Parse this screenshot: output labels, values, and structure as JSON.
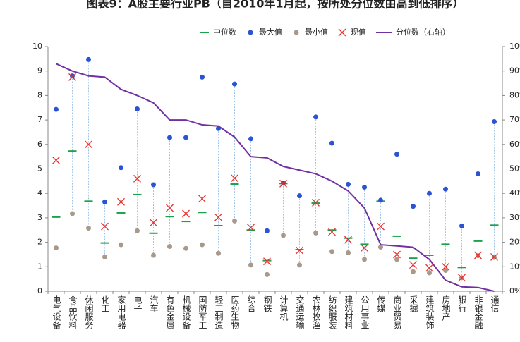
{
  "chart_data": {
    "type": "range-dot",
    "title": "图表9：A股主要行业PB（自2010年1月起，按所处分位数由高到低排序）",
    "categories": [
      "电气设备",
      "食品饮料",
      "休闲服务",
      "化工",
      "家用电器",
      "电子",
      "汽车",
      "有色金属",
      "机械设备",
      "国防军工",
      "轻工制造",
      "医药生物",
      "综合",
      "钢铁",
      "计算机",
      "交通运输",
      "农林牧渔",
      "纺织服装",
      "建筑材料",
      "公用事业",
      "传媒",
      "商业贸易",
      "采掘",
      "建筑装饰",
      "房地产",
      "银行",
      "非银金融",
      "通信"
    ],
    "series": [
      {
        "name": "中位数",
        "color": "#1aa34a",
        "marker": "dash",
        "values": [
          3.03,
          5.73,
          3.68,
          1.97,
          3.2,
          3.95,
          2.37,
          3.05,
          2.85,
          3.22,
          2.68,
          4.38,
          2.5,
          1.25,
          4.4,
          1.7,
          3.6,
          2.5,
          2.17,
          1.92,
          3.68,
          2.25,
          1.35,
          1.47,
          1.92,
          0.97,
          2.05,
          2.7
        ]
      },
      {
        "name": "最大值",
        "color": "#2a54d4",
        "marker": "dot",
        "values": [
          7.43,
          8.8,
          9.47,
          3.65,
          5.05,
          7.45,
          4.35,
          6.28,
          6.28,
          8.75,
          6.65,
          8.47,
          6.23,
          2.47,
          4.42,
          3.9,
          7.12,
          6.05,
          4.37,
          4.25,
          3.72,
          5.6,
          3.47,
          4.0,
          4.17,
          2.67,
          4.8,
          6.93
        ]
      },
      {
        "name": "最小值",
        "color": "#a8998a",
        "marker": "dot",
        "values": [
          1.77,
          3.17,
          2.58,
          1.4,
          1.9,
          2.47,
          1.47,
          1.83,
          1.75,
          1.9,
          1.55,
          2.87,
          1.07,
          0.68,
          2.28,
          1.07,
          2.38,
          1.62,
          1.57,
          1.3,
          1.8,
          1.3,
          0.8,
          0.75,
          0.85,
          0.55,
          1.45,
          1.38
        ]
      },
      {
        "name": "现值",
        "color": "#e8302c",
        "marker": "cross",
        "values": [
          5.35,
          8.75,
          6.0,
          2.65,
          3.65,
          4.6,
          2.8,
          3.4,
          3.17,
          3.78,
          3.02,
          4.62,
          2.6,
          1.22,
          4.4,
          1.67,
          3.62,
          2.42,
          2.1,
          1.77,
          2.65,
          1.5,
          1.08,
          0.95,
          1.0,
          0.55,
          1.47,
          1.4
        ]
      },
      {
        "name": "分位数（右轴）",
        "color": "#7030a0",
        "marker": "line",
        "axis": "y2",
        "values": [
          93,
          90,
          88,
          87.5,
          82.5,
          80,
          77,
          70,
          70,
          68,
          67.5,
          63,
          55,
          54.5,
          51,
          49.5,
          48,
          45,
          41,
          34,
          19,
          18.5,
          18,
          13,
          4.5,
          1.8,
          1.5,
          0
        ]
      }
    ],
    "range_color": "#9dc3e6",
    "ylim": [
      0,
      10
    ],
    "yticks": [
      0,
      1,
      2,
      3,
      4,
      5,
      6,
      7,
      8,
      9,
      10
    ],
    "y2lim": [
      0,
      100
    ],
    "y2ticks": [
      {
        "value": 0,
        "label": "0%"
      },
      {
        "value": 10,
        "label": "10%"
      },
      {
        "value": 20,
        "label": "20%"
      },
      {
        "value": 30,
        "label": "30%"
      },
      {
        "value": 40,
        "label": "40%"
      },
      {
        "value": 50,
        "label": "50%"
      },
      {
        "value": 60,
        "label": "60%"
      },
      {
        "value": 70,
        "label": "70%"
      },
      {
        "value": 80,
        "label": "80%"
      },
      {
        "value": 90,
        "label": "90%"
      },
      {
        "value": 100,
        "label": "100%"
      }
    ],
    "legend": "top"
  }
}
